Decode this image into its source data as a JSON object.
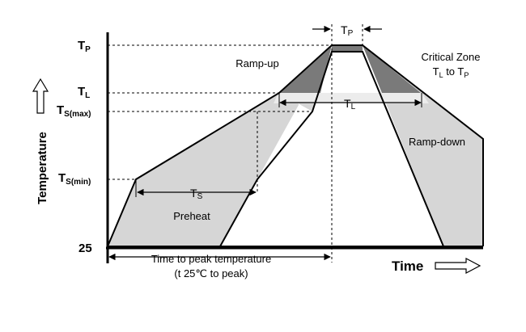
{
  "y_axis": {
    "title": "Temperature",
    "ticks": {
      "tp": {
        "main": "T",
        "sub": "P"
      },
      "tl": {
        "main": "T",
        "sub": "L"
      },
      "tsmax": {
        "main": "T",
        "sub": "S(max)"
      },
      "tsmin": {
        "main": "T",
        "sub": "S(min)"
      },
      "base": "25"
    }
  },
  "x_axis": {
    "title": "Time",
    "span_label": "Time to peak temperature",
    "span_sub": "(t 25℃ to peak)"
  },
  "regions": {
    "ramp_up": "Ramp-up",
    "ramp_down": "Ramp-down",
    "preheat": "Preheat",
    "critical_zone_line1": "Critical Zone",
    "critical_zone_line2": {
      "a": "T",
      "a_sub": "L",
      "mid": " to T",
      "b_sub": "P"
    }
  },
  "durations": {
    "tp": {
      "main": "T",
      "sub": "P"
    },
    "tl": {
      "main": "T",
      "sub": "L"
    },
    "ts": {
      "main": "T",
      "sub": "S"
    }
  },
  "colors": {
    "band_fill": "#d6d6d6",
    "critical_fill": "#7a7a7a",
    "light_band": "#ececec",
    "line": "#000000"
  }
}
